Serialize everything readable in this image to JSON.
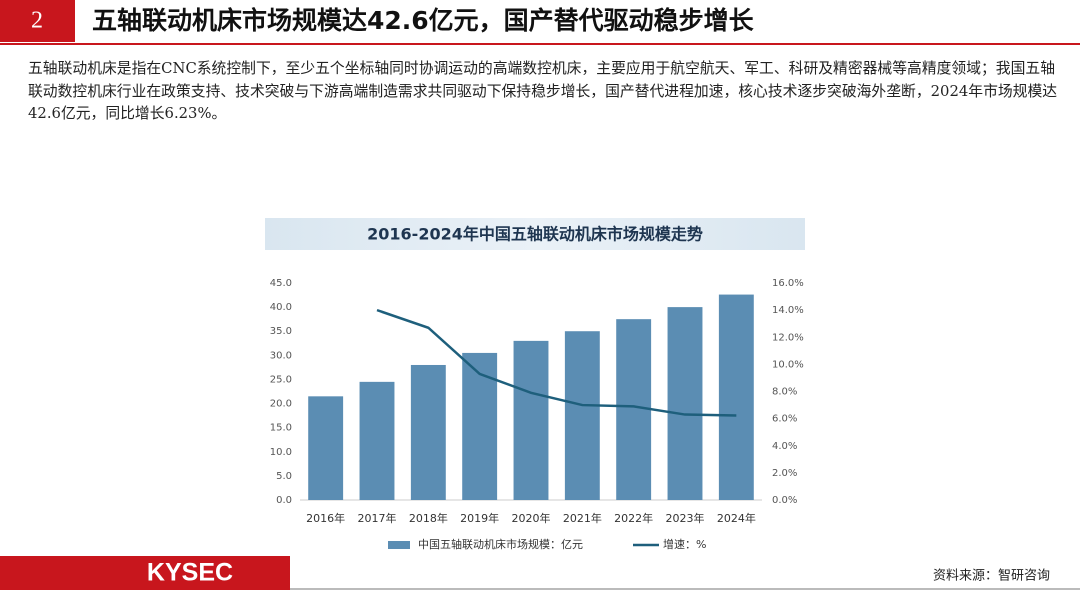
{
  "header": {
    "number": "2",
    "title": "五轴联动机床市场规模达42.6亿元，国产替代驱动稳步增长"
  },
  "body": "五轴联动机床是指在CNC系统控制下，至少五个坐标轴同时协调运动的高端数控机床，主要应用于航空航天、军工、科研及精密器械等高精度领域；我国五轴联动数控机床行业在政策支持、技术突破与下游高端制造需求共同驱动下保持稳步增长，国产替代进程加速，核心技术逐步突破海外垄断，2024年市场规模达42.6亿元，同比增长6.23%。",
  "chart_data": {
    "type": "bar",
    "title": "2016-2024年中国五轴联动机床市场规模走势",
    "categories": [
      "2016年",
      "2017年",
      "2018年",
      "2019年",
      "2020年",
      "2021年",
      "2022年",
      "2023年",
      "2024年"
    ],
    "series": [
      {
        "name": "中国五轴联动机床市场规模：亿元",
        "type": "bar",
        "color": "#5b8db3",
        "values": [
          21.5,
          24.5,
          28,
          30.5,
          33,
          35,
          37.5,
          40,
          42.6
        ]
      },
      {
        "name": "增速：%",
        "type": "line",
        "axis": "y2",
        "color": "#1e5f7c",
        "values": [
          null,
          14.0,
          12.7,
          9.3,
          7.9,
          7.0,
          6.9,
          6.3,
          6.23
        ]
      }
    ],
    "ylim": [
      0,
      45
    ],
    "yticks": [
      {
        "value": 0,
        "label": "0.0"
      },
      {
        "value": 5,
        "label": "5.0"
      },
      {
        "value": 10,
        "label": "10.0"
      },
      {
        "value": 15,
        "label": "15.0"
      },
      {
        "value": 20,
        "label": "20.0"
      },
      {
        "value": 25,
        "label": "25.0"
      },
      {
        "value": 30,
        "label": "30.0"
      },
      {
        "value": 35,
        "label": "35.0"
      },
      {
        "value": 40,
        "label": "40.0"
      },
      {
        "value": 45,
        "label": "45.0"
      }
    ],
    "y2lim": [
      0,
      16
    ],
    "y2ticks": [
      {
        "value": 0,
        "label": "0.0%"
      },
      {
        "value": 2,
        "label": "2.0%"
      },
      {
        "value": 4,
        "label": "4.0%"
      },
      {
        "value": 6,
        "label": "6.0%"
      },
      {
        "value": 8,
        "label": "8.0%"
      },
      {
        "value": 10,
        "label": "10.0%"
      },
      {
        "value": 12,
        "label": "12.0%"
      },
      {
        "value": 14,
        "label": "14.0%"
      },
      {
        "value": 16,
        "label": "16.0%"
      }
    ],
    "grid": false,
    "legend": "bottom"
  },
  "footer": {
    "logo": "KYSEC",
    "source": "资料来源：智研咨询"
  }
}
